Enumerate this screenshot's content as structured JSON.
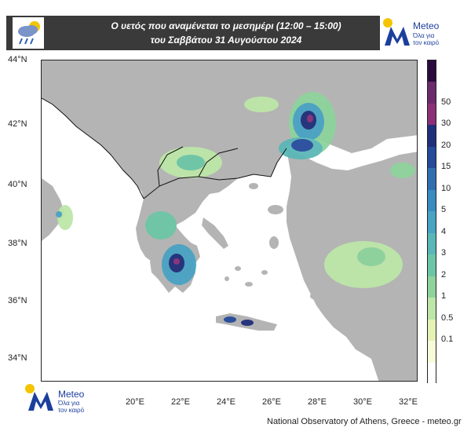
{
  "header": {
    "title_line1": "Ο υετός που αναμένεται το μεσημέρι (12:00 – 15:00)",
    "title_line2": "του Σαββάτου 31 Αυγούστου 2024",
    "weather_icon": "rain-cloud-icon"
  },
  "logo": {
    "name": "Meteo",
    "tagline_1": "Όλα για",
    "tagline_2": "τον καιρό",
    "colors": {
      "blue": "#1c3f9c",
      "yellow": "#f5c400"
    }
  },
  "map": {
    "y_ticks": [
      "44°N",
      "42°N",
      "40°N",
      "38°N",
      "36°N",
      "34°N"
    ],
    "x_ticks": [
      "20°E",
      "22°E",
      "24°E",
      "26°E",
      "28°E",
      "30°E",
      "32°E"
    ],
    "land_color": "#b4b4b4",
    "sea_color": "#ffffff"
  },
  "colorbar": {
    "labels": [
      "50",
      "30",
      "20",
      "15",
      "10",
      "5",
      "4",
      "3",
      "2",
      "1",
      "0.5",
      "0.1"
    ],
    "colors": [
      "#2b0b3f",
      "#6b2a6b",
      "#8a2f78",
      "#1f2f7a",
      "#244a9a",
      "#2f6fb0",
      "#3a8bbf",
      "#49a3c3",
      "#5ab7b7",
      "#6cc6a6",
      "#8ed39c",
      "#bde6a8",
      "#e5f2b6",
      "#f7fbd8",
      "#ffffff"
    ]
  },
  "footer": {
    "credit": "National Observatory of Athens, Greece - meteo.gr"
  }
}
